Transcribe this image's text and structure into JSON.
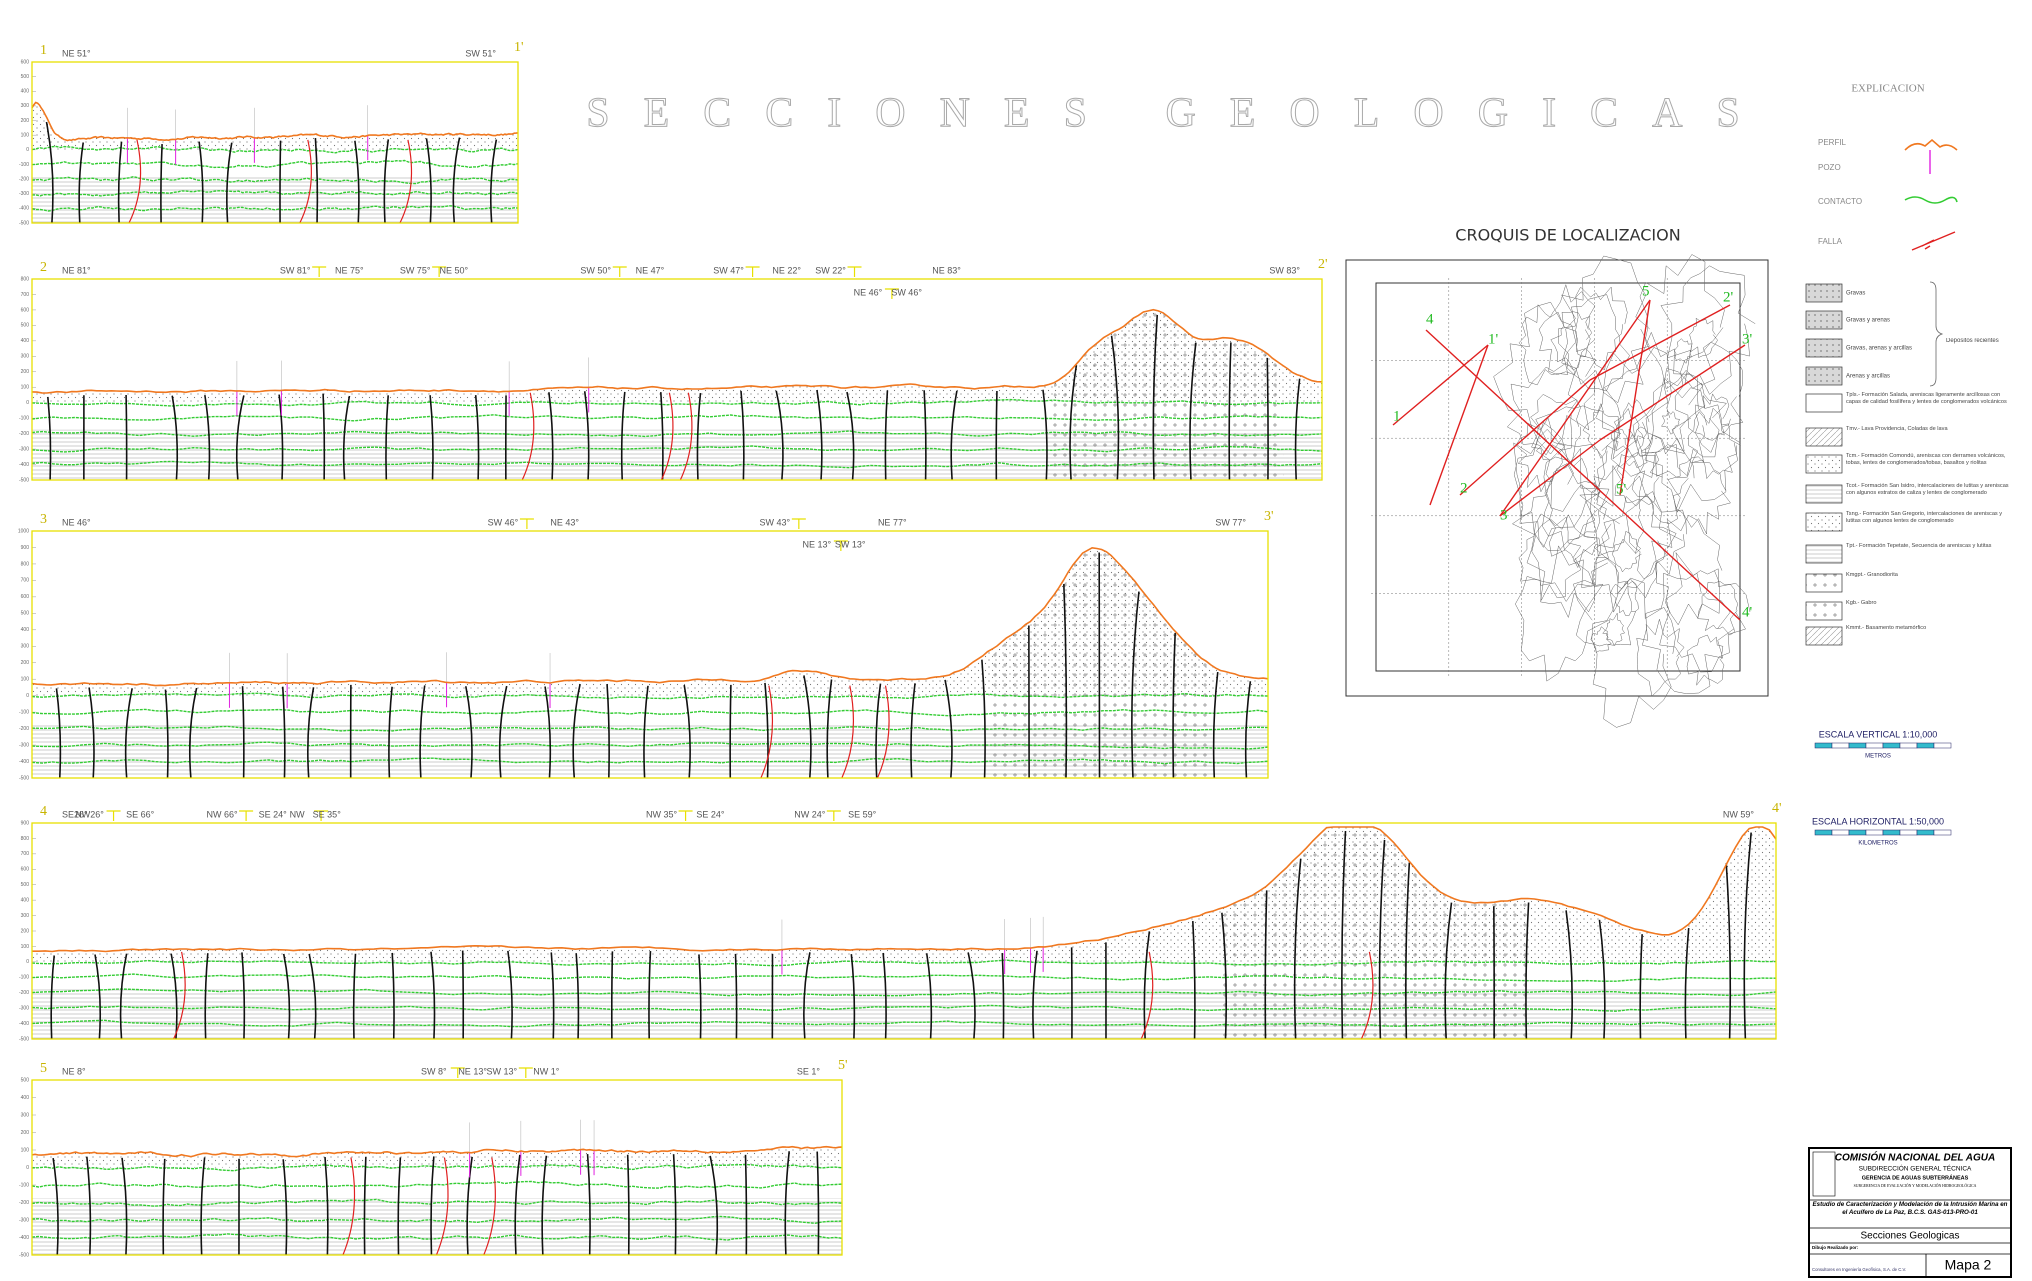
{
  "header": {
    "title": "SECCIONES GEOLOGICAS"
  },
  "sections": [
    {
      "number": "1",
      "number_end": "1'",
      "start": "NE 51°",
      "end": "SW 51°",
      "bends": [],
      "elevations": [
        600,
        500,
        400,
        300,
        200,
        100,
        0,
        -100,
        -200,
        -300,
        -400,
        -500
      ]
    },
    {
      "number": "2",
      "number_end": "2'",
      "start": "NE 81°",
      "end": "SW 83°",
      "bends": [
        "SW 81°",
        "NE 75°",
        "SW 75°",
        "NE 50°",
        "SW 50°",
        "NE 47°",
        "SW 47°",
        "NE 22°",
        "SW 22°",
        "NE 83°",
        "NE 46°",
        "SW 46°"
      ],
      "elevations": [
        800,
        700,
        600,
        500,
        400,
        300,
        200,
        100,
        0,
        -100,
        -200,
        -300,
        -400,
        -500
      ]
    },
    {
      "number": "3",
      "number_end": "3'",
      "start": "NE 46°",
      "end": "SW 77°",
      "bends": [
        "SW 46°",
        "NE 43°",
        "SW 43°",
        "NE 77°",
        "NE 13°",
        "SW 13°"
      ],
      "elevations": [
        1000,
        900,
        800,
        700,
        600,
        500,
        400,
        300,
        200,
        100,
        0,
        -100,
        -200,
        -300,
        -400,
        -500
      ]
    },
    {
      "number": "4",
      "number_end": "4'",
      "start": "SE26°",
      "end": "NW 59°",
      "bends": [
        "NW26°",
        "SE 66°",
        "NW 66°",
        "SE 24°",
        "NW",
        "SE 35°",
        "NW 35°",
        "SE 24°",
        "NW 24°",
        "SE 59°"
      ],
      "elevations": [
        900,
        800,
        700,
        600,
        500,
        400,
        300,
        200,
        100,
        0,
        -100,
        -200,
        -300,
        -400,
        -500
      ]
    },
    {
      "number": "5",
      "number_end": "5'",
      "start": "NE 8°",
      "end": "SE 1°",
      "bends": [
        "SW 8°",
        "NE 13°",
        "SW 13°",
        "NW 1°"
      ],
      "elevations": [
        500,
        400,
        300,
        200,
        100,
        0,
        -100,
        -200,
        -300,
        -400,
        -500
      ]
    }
  ],
  "croquis": {
    "title": "CROQUIS DE LOCALIZACION",
    "labels": [
      "4",
      "1",
      "1'",
      "2",
      "3",
      "5",
      "2'",
      "3'",
      "5'",
      "4'"
    ]
  },
  "legend": {
    "title": "EXPLICACION",
    "symbols": [
      "PERFIL",
      "POZO",
      "CONTACTO",
      "FALLA"
    ],
    "deposits": [
      "Gravas",
      "Gravas y arenas",
      "Gravas, arenas y arcillas",
      "Arenas y arcillas"
    ],
    "deposits_group": "Depositos recientes",
    "formations": [
      "Tpls.- Formación Salada, areniscas ligeramente arcillosas con capas de calidad fosilífera y lentes de conglomerados volcánicos",
      "Tmv.- Lava Providencia, Coladas de lava",
      "Tcm.- Formación Comondú, areniscas con derrames volcánicos, tobas, lentes de conglomerados/tobas, basaltos y riolitas",
      "Tcot.- Formación San Isidro, intercalaciones de lutitas y areniscas con algunos estratos de caliza y lentes de conglomerado",
      "Tsng.- Formación San Gregorio, intercalaciones de areniscas y lutitas con algunos lentes de conglomerado",
      "Tpt.- Formación Tepetate, Secuencia de areniscas y lutitas",
      "Kmgpt.- Granodiorita",
      "Kgb.- Gabro",
      "Kmmt.- Basamento metamórfico"
    ]
  },
  "scales": {
    "vertical": "ESCALA VERTICAL 1:10,000",
    "vertical_unit": "METROS",
    "horizontal": "ESCALA HORIZONTAL 1:50,000",
    "horizontal_unit": "KILOMETROS"
  },
  "title_block": {
    "org": "COMISIÓN NACIONAL DEL AGUA",
    "sub": "SUBDIRECCIÓN GENERAL TÉCNICA",
    "dept": "GERENCIA DE AGUAS SUBTERRÁNEAS",
    "unit": "SUBGERENCIA DE EVALUACIÓN Y MODELACIÓN HIDROGEOLÓGICA",
    "study": "Estudio de Caracterización y Modelación de la Intrusión Marina en el Acuífero de La Paz, B.C.S. GAS-013-PRO-01",
    "sheet_title": "Secciones Geologicas",
    "drawn_by": "Dibujo Realizado por:",
    "company": "Consultores en Ingeniería Geofísica, S.A. de C.V.",
    "sheet": "Mapa 2"
  }
}
